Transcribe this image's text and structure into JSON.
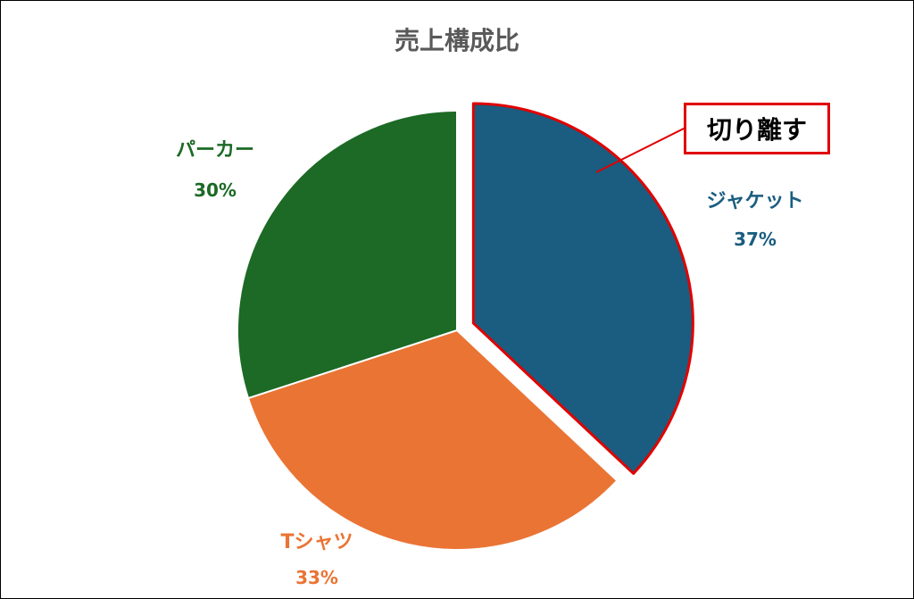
{
  "chart_data": {
    "type": "pie",
    "title": "売上構成比",
    "categories": [
      "ジャケット",
      "Tシャツ",
      "パーカー"
    ],
    "values": [
      37,
      33,
      30
    ],
    "value_labels": [
      "37%",
      "33%",
      "30%"
    ],
    "colors": [
      "#1a5d80",
      "#ea7434",
      "#1c6a25"
    ],
    "exploded": [
      "ジャケット"
    ],
    "legend": "none (data labels beside slices)"
  },
  "annotation": {
    "text": "切り離す",
    "border_color": "#e00000",
    "target": "ジャケット"
  }
}
